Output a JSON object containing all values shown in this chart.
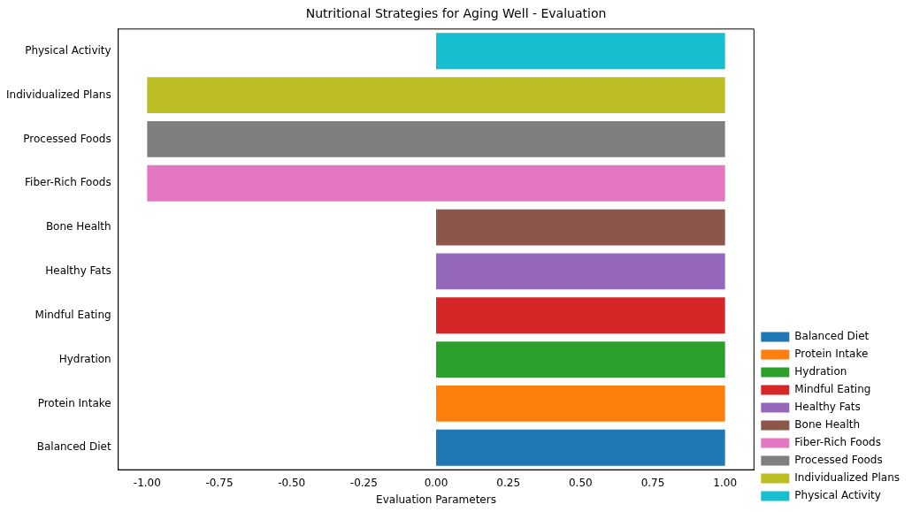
{
  "chart_data": {
    "type": "bar",
    "orientation": "horizontal",
    "title": "Nutritional Strategies for Aging Well - Evaluation",
    "xlabel": "Evaluation Parameters",
    "categories": [
      "Physical Activity",
      "Individualized Plans",
      "Processed Foods",
      "Fiber-Rich Foods",
      "Bone Health",
      "Healthy Fats",
      "Mindful Eating",
      "Hydration",
      "Protein Intake",
      "Balanced Diet"
    ],
    "series": [
      {
        "name": "Balanced Diet",
        "color": "#1f77b4",
        "values": [
          null,
          null,
          null,
          null,
          null,
          null,
          null,
          null,
          null,
          1
        ]
      },
      {
        "name": "Protein Intake",
        "color": "#ff7f0e",
        "values": [
          null,
          null,
          null,
          null,
          null,
          null,
          null,
          null,
          1,
          null
        ]
      },
      {
        "name": "Hydration",
        "color": "#2ca02c",
        "values": [
          null,
          null,
          null,
          null,
          null,
          null,
          null,
          1,
          null,
          null
        ]
      },
      {
        "name": "Mindful Eating",
        "color": "#d62728",
        "values": [
          null,
          null,
          null,
          null,
          null,
          null,
          1,
          null,
          null,
          null
        ]
      },
      {
        "name": "Healthy Fats",
        "color": "#9467bd",
        "values": [
          null,
          null,
          null,
          null,
          null,
          1,
          null,
          null,
          null,
          null
        ]
      },
      {
        "name": "Bone Health",
        "color": "#8c564b",
        "values": [
          null,
          null,
          null,
          null,
          1,
          null,
          null,
          null,
          null,
          null
        ]
      },
      {
        "name": "Fiber-Rich Foods",
        "color": "#e377c2",
        "values": [
          null,
          null,
          null,
          2,
          null,
          null,
          null,
          null,
          null,
          null
        ],
        "base": [
          null,
          null,
          null,
          -1,
          null,
          null,
          null,
          null,
          null,
          null
        ]
      },
      {
        "name": "Processed Foods",
        "color": "#7f7f7f",
        "values": [
          null,
          null,
          2,
          null,
          null,
          null,
          null,
          null,
          null,
          null
        ],
        "base": [
          null,
          null,
          -1,
          null,
          null,
          null,
          null,
          null,
          null,
          null
        ]
      },
      {
        "name": "Individualized Plans",
        "color": "#bcbd22",
        "values": [
          null,
          2,
          null,
          null,
          null,
          null,
          null,
          null,
          null,
          null
        ],
        "base": [
          null,
          -1,
          null,
          null,
          null,
          null,
          null,
          null,
          null,
          null
        ]
      },
      {
        "name": "Physical Activity",
        "color": "#17becf",
        "values": [
          1,
          null,
          null,
          null,
          null,
          null,
          null,
          null,
          null,
          null
        ]
      }
    ],
    "xlim": [
      -1.1,
      1.1
    ],
    "xticks": [
      {
        "value": -1,
        "label": "-1.00"
      },
      {
        "value": -0.75,
        "label": "-0.75"
      },
      {
        "value": -0.5,
        "label": "-0.50"
      },
      {
        "value": -0.25,
        "label": "-0.25"
      },
      {
        "value": 0,
        "label": "0.00"
      },
      {
        "value": 0.25,
        "label": "0.25"
      },
      {
        "value": 0.5,
        "label": "0.50"
      },
      {
        "value": 0.75,
        "label": "0.75"
      },
      {
        "value": 1,
        "label": "1.00"
      }
    ],
    "grid": false,
    "legend": "bottom right"
  }
}
